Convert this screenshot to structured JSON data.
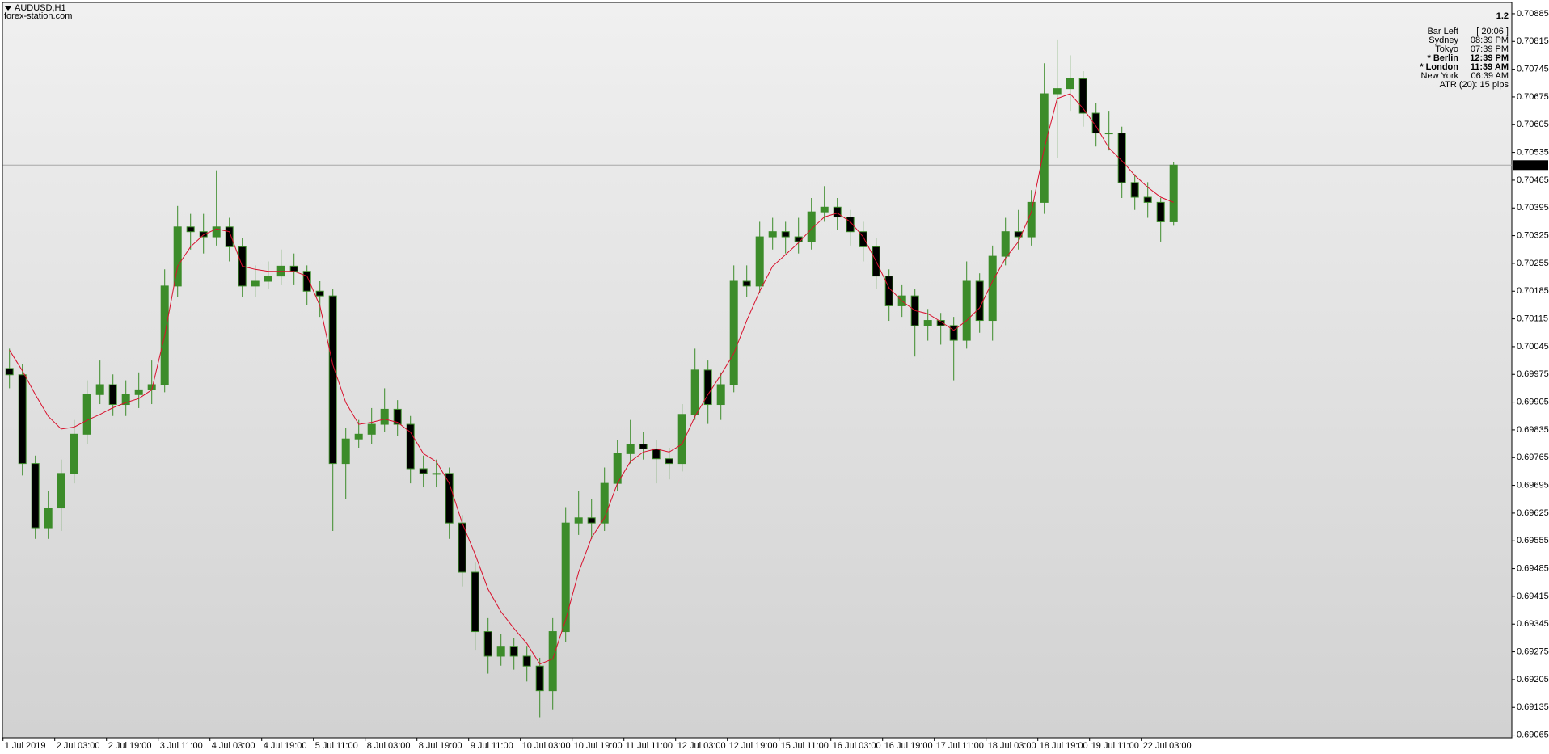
{
  "header": {
    "symbol": "AUDUSD,H1",
    "source": "forex-station.com"
  },
  "info_panel": {
    "value": "1.2",
    "rows": [
      {
        "label": "Bar Left",
        "value": "[ 20:06 ]",
        "highlight": false
      },
      {
        "label": "Sydney",
        "value": "08:39 PM",
        "highlight": false
      },
      {
        "label": "Tokyo",
        "value": "07:39 PM",
        "highlight": false
      },
      {
        "label": "* Berlin",
        "value": "12:39 PM",
        "highlight": true
      },
      {
        "label": "* London",
        "value": "11:39 AM",
        "highlight": true
      },
      {
        "label": "New York",
        "value": "06:39 AM",
        "highlight": false
      }
    ],
    "atr": "ATR (20): 15 pips",
    "color": "#8c8c8c",
    "highlight_color": "#e8182c"
  },
  "chart_data": {
    "type": "candlestick",
    "categories": [
      "1 Jul 2019",
      null,
      null,
      null,
      "2 Jul 03:00",
      null,
      null,
      null,
      "2 Jul 19:00",
      null,
      null,
      null,
      "3 Jul 11:00",
      null,
      null,
      null,
      "4 Jul 03:00",
      null,
      null,
      null,
      "4 Jul 19:00",
      null,
      null,
      null,
      "5 Jul 11:00",
      null,
      null,
      null,
      "8 Jul 03:00",
      null,
      null,
      null,
      "8 Jul 19:00",
      null,
      null,
      null,
      "9 Jul 11:00",
      null,
      null,
      null,
      "10 Jul 03:00",
      null,
      null,
      null,
      "10 Jul 19:00",
      null,
      null,
      null,
      "11 Jul 11:00",
      null,
      null,
      null,
      "12 Jul 03:00",
      null,
      null,
      null,
      "12 Jul 19:00",
      null,
      null,
      null,
      "15 Jul 11:00",
      null,
      null,
      null,
      "16 Jul 03:00",
      null,
      null,
      null,
      "16 Jul 19:00",
      null,
      null,
      null,
      "17 Jul 11:00",
      null,
      null,
      null,
      "18 Jul 03:00",
      null,
      null,
      null,
      "18 Jul 19:00",
      null,
      null,
      null,
      "19 Jul 11:00",
      null,
      null,
      null,
      "22 Jul 03:00",
      null,
      null
    ],
    "open": [
      0.6999,
      0.69974,
      0.6975,
      0.69588,
      0.69638,
      0.69725,
      0.69824,
      0.69924,
      0.69949,
      0.69899,
      0.69924,
      0.69936,
      0.69949,
      0.70198,
      0.70347,
      0.70335,
      0.70322,
      0.70347,
      0.70297,
      0.70198,
      0.7021,
      0.70223,
      0.70248,
      0.70235,
      0.70185,
      0.70173,
      0.6975,
      0.69812,
      0.69824,
      0.69849,
      0.69887,
      0.69849,
      0.69737,
      0.69725,
      0.69725,
      0.696,
      0.69476,
      0.69326,
      0.69264,
      0.69289,
      0.69264,
      0.69239,
      0.69177,
      0.69326,
      0.696,
      0.69613,
      0.696,
      0.697,
      0.69775,
      0.69799,
      0.69787,
      0.69762,
      0.6975,
      0.69874,
      0.69986,
      0.69899,
      0.69949,
      0.7021,
      0.70198,
      0.70322,
      0.70335,
      0.70322,
      0.7031,
      0.70385,
      0.70397,
      0.70372,
      0.70335,
      0.70297,
      0.70223,
      0.70148,
      0.70173,
      0.70098,
      0.70111,
      0.70098,
      0.70061,
      0.7021,
      0.70111,
      0.70273,
      0.70335,
      0.70322,
      0.70409,
      0.70683,
      0.70696,
      0.70721,
      0.70634,
      0.70584,
      0.70584,
      0.70459,
      0.70422,
      0.70409,
      0.7036
    ],
    "high": [
      0.7004,
      0.7,
      0.6977,
      0.6968,
      0.6976,
      0.6986,
      0.6996,
      0.7001,
      0.69975,
      0.6996,
      0.6998,
      0.7001,
      0.7024,
      0.704,
      0.7038,
      0.7038,
      0.7049,
      0.7037,
      0.7032,
      0.7025,
      0.7026,
      0.7029,
      0.7028,
      0.7025,
      0.7021,
      0.7019,
      0.6984,
      0.6986,
      0.6989,
      0.6994,
      0.6991,
      0.6987,
      0.6977,
      0.6976,
      0.6974,
      0.6962,
      0.695,
      0.6936,
      0.6932,
      0.6931,
      0.6929,
      0.6926,
      0.6936,
      0.6964,
      0.6968,
      0.6966,
      0.6974,
      0.6981,
      0.6986,
      0.6983,
      0.6981,
      0.6979,
      0.699,
      0.7004,
      0.7001,
      0.6998,
      0.7025,
      0.7025,
      0.7036,
      0.7037,
      0.7036,
      0.7037,
      0.7042,
      0.7045,
      0.7042,
      0.7039,
      0.7036,
      0.7032,
      0.7024,
      0.702,
      0.7019,
      0.7014,
      0.7013,
      0.7012,
      0.7026,
      0.7023,
      0.703,
      0.7037,
      0.7039,
      0.7044,
      0.7076,
      0.7082,
      0.7078,
      0.7074,
      0.7066,
      0.7064,
      0.706,
      0.7048,
      0.7046,
      0.7042,
      0.7051
    ],
    "low": [
      0.6994,
      0.6972,
      0.6956,
      0.6956,
      0.6958,
      0.697,
      0.698,
      0.699,
      0.6987,
      0.6987,
      0.6989,
      0.699,
      0.6993,
      0.7017,
      0.7029,
      0.7028,
      0.703,
      0.7026,
      0.7017,
      0.7017,
      0.7019,
      0.702,
      0.702,
      0.7015,
      0.7012,
      0.6958,
      0.6966,
      0.6979,
      0.698,
      0.6983,
      0.6982,
      0.697,
      0.6969,
      0.6969,
      0.6956,
      0.6944,
      0.6928,
      0.6922,
      0.6924,
      0.6923,
      0.692,
      0.6911,
      0.6913,
      0.693,
      0.6957,
      0.6956,
      0.6958,
      0.6968,
      0.6975,
      0.6976,
      0.697,
      0.6971,
      0.6973,
      0.6986,
      0.6985,
      0.6986,
      0.6993,
      0.7017,
      0.7018,
      0.7029,
      0.7028,
      0.7028,
      0.7029,
      0.7036,
      0.7034,
      0.703,
      0.7026,
      0.7019,
      0.7011,
      0.7012,
      0.7002,
      0.7006,
      0.7005,
      0.6996,
      0.7004,
      0.7008,
      0.7006,
      0.7025,
      0.7029,
      0.703,
      0.7038,
      0.7052,
      0.7064,
      0.706,
      0.7055,
      0.7054,
      0.7042,
      0.7039,
      0.7037,
      0.7031,
      0.7035
    ],
    "close": [
      0.69974,
      0.6975,
      0.69588,
      0.69638,
      0.69725,
      0.69824,
      0.69924,
      0.69949,
      0.69899,
      0.69924,
      0.69936,
      0.69949,
      0.70198,
      0.70347,
      0.70335,
      0.70322,
      0.70347,
      0.70297,
      0.70198,
      0.7021,
      0.70223,
      0.70248,
      0.70235,
      0.70185,
      0.70173,
      0.6975,
      0.69812,
      0.69824,
      0.69849,
      0.69887,
      0.69849,
      0.69737,
      0.69725,
      0.69725,
      0.696,
      0.69476,
      0.69326,
      0.69264,
      0.69289,
      0.69264,
      0.69239,
      0.69177,
      0.69326,
      0.696,
      0.69613,
      0.696,
      0.697,
      0.69775,
      0.69799,
      0.69787,
      0.69762,
      0.6975,
      0.69874,
      0.69986,
      0.69899,
      0.69949,
      0.7021,
      0.70198,
      0.70322,
      0.70335,
      0.70322,
      0.7031,
      0.70385,
      0.70397,
      0.70372,
      0.70335,
      0.70297,
      0.70223,
      0.70148,
      0.70173,
      0.70098,
      0.70111,
      0.70098,
      0.70061,
      0.7021,
      0.70111,
      0.70273,
      0.70335,
      0.70322,
      0.70409,
      0.70683,
      0.70696,
      0.70721,
      0.70634,
      0.70584,
      0.70584,
      0.70459,
      0.70422,
      0.70409,
      0.7036,
      0.70503
    ],
    "up_color": "#3c8c2a",
    "down_color": "#000000",
    "wick_color": "#3c8c2a",
    "ma": {
      "color": "#d8102c",
      "values": [
        0.70036,
        0.69984,
        0.69924,
        0.69869,
        0.69837,
        0.69842,
        0.69859,
        0.69874,
        0.69891,
        0.69904,
        0.69914,
        0.69936,
        0.70073,
        0.70248,
        0.70297,
        0.70327,
        0.70342,
        0.70335,
        0.70248,
        0.7024,
        0.70235,
        0.70235,
        0.70235,
        0.70223,
        0.70148,
        0.69999,
        0.69904,
        0.69849,
        0.69854,
        0.69862,
        0.69854,
        0.69829,
        0.69775,
        0.69755,
        0.697,
        0.696,
        0.69521,
        0.69433,
        0.69376,
        0.69334,
        0.69296,
        0.69244,
        0.69257,
        0.69356,
        0.69476,
        0.69563,
        0.69613,
        0.697,
        0.69755,
        0.69779,
        0.69787,
        0.69779,
        0.69799,
        0.69869,
        0.69924,
        0.69974,
        0.70028,
        0.70111,
        0.70185,
        0.70248,
        0.70277,
        0.70307,
        0.70342,
        0.70372,
        0.70382,
        0.7036,
        0.70322,
        0.7026,
        0.70193,
        0.7016,
        0.70136,
        0.70128,
        0.70108,
        0.70086,
        0.70111,
        0.70143,
        0.7021,
        0.70268,
        0.7031,
        0.70385,
        0.70546,
        0.70671,
        0.70683,
        0.70646,
        0.70601,
        0.70546,
        0.70514,
        0.70477,
        0.70447,
        0.70422,
        0.70409
      ]
    },
    "current_price": 0.70503,
    "ylim": [
      0.69058,
      0.70912
    ],
    "yticks": [
      0.70885,
      0.70815,
      0.70745,
      0.70675,
      0.70605,
      0.70535,
      0.70465,
      0.70395,
      0.70325,
      0.70255,
      0.70185,
      0.70115,
      0.70045,
      0.69975,
      0.69905,
      0.69835,
      0.69765,
      0.69695,
      0.69625,
      0.69555,
      0.69485,
      0.69415,
      0.69345,
      0.69275,
      0.69205,
      0.69135,
      0.69065
    ],
    "grid": false
  }
}
